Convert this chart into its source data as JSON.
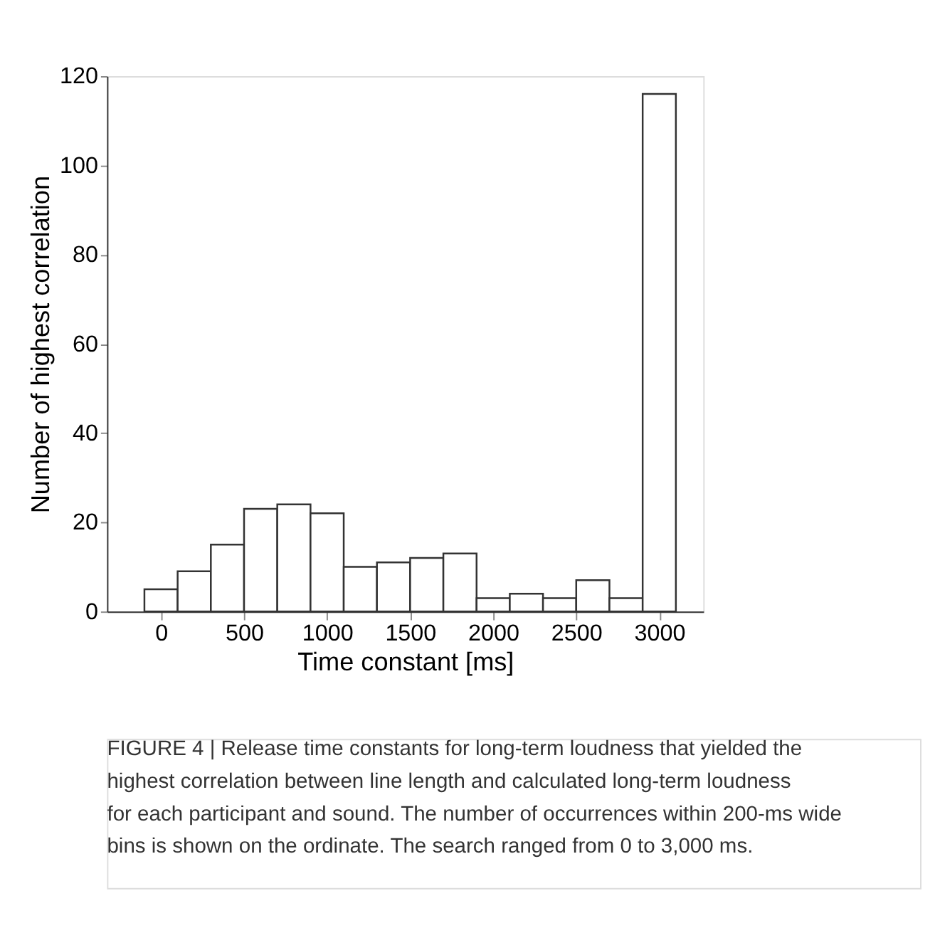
{
  "chart_data": {
    "type": "histogram",
    "xlabel": "Time constant [ms]",
    "ylabel": "Number of highest correlation",
    "bins": [
      -100,
      100,
      300,
      500,
      700,
      900,
      1100,
      1300,
      1500,
      1700,
      1900,
      2100,
      2300,
      2500,
      2700,
      2900,
      3100
    ],
    "values": [
      5,
      9,
      15,
      23,
      24,
      22,
      10,
      11,
      12,
      13,
      3,
      4,
      3,
      7,
      3,
      116
    ],
    "color": "#ffffff",
    "xlim": [
      -325,
      3265
    ],
    "xticks": [
      0,
      500,
      1000,
      1500,
      2000,
      2500,
      3000
    ],
    "ylim": [
      0,
      120
    ],
    "yticks": [
      0,
      20,
      40,
      60,
      80,
      100,
      120
    ],
    "grid": false,
    "annotations": [
      "FIGURE 4 | Release time constants for long-term loudness that yielded the highest correlation between line length and calculated long-term loudness for each participant and sound. The number of occurrences within 200-ms wide bins is shown on the ordinate. The search ranged from 0 to 3,000 ms."
    ]
  }
}
